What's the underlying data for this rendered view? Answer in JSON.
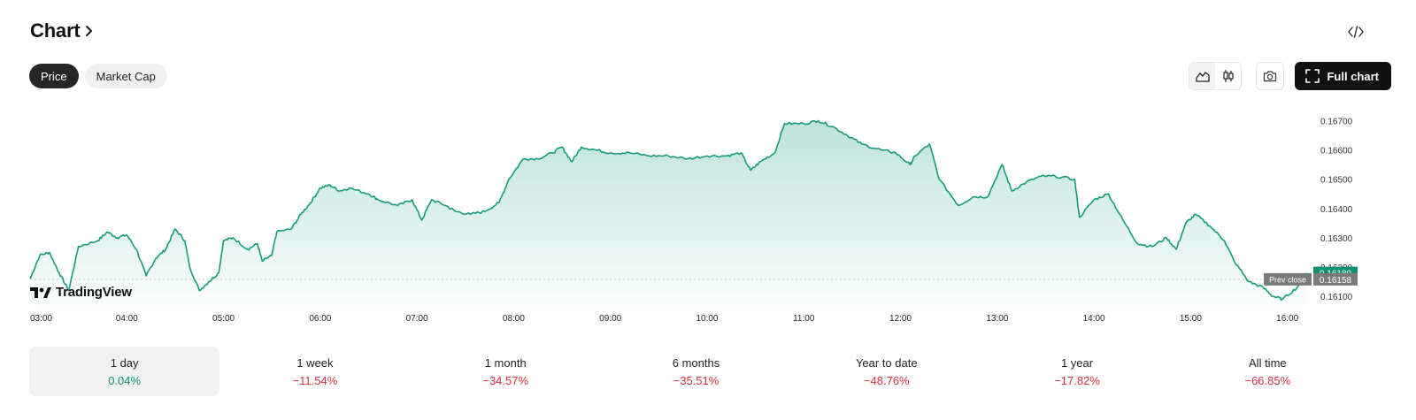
{
  "header": {
    "title": "Chart",
    "chevron_icon": "chevron-right-icon",
    "embed_icon": "code-icon"
  },
  "tabs": [
    {
      "label": "Price",
      "active": true
    },
    {
      "label": "Market Cap",
      "active": false
    }
  ],
  "toolbar": {
    "line_icon": "area-chart-icon",
    "candle_icon": "candlestick-icon",
    "camera_icon": "camera-icon",
    "fullchart_icon": "expand-icon",
    "full_chart_label": "Full chart"
  },
  "brand": {
    "logo_icon": "tradingview-logo-icon",
    "name": "TradingView"
  },
  "colors": {
    "line": "#159a7c",
    "positive": "#0e8f6e",
    "negative": "#d9303e",
    "current_badge": "#0e8f6e",
    "prev_badge": "#7a7a7a"
  },
  "chart_data": {
    "type": "area",
    "x_ticks": [
      "03:00",
      "04:00",
      "05:00",
      "06:00",
      "07:00",
      "08:00",
      "09:00",
      "10:00",
      "11:00",
      "12:00",
      "13:00",
      "14:00",
      "15:00",
      "16:00"
    ],
    "y_ticks": [
      "0.16100",
      "0.16200",
      "0.16300",
      "0.16400",
      "0.16500",
      "0.16600",
      "0.16700"
    ],
    "ylim": [
      0.1607,
      0.1675
    ],
    "current_price": "0.16180",
    "prev_close_label": "Prev close",
    "prev_close": "0.16158",
    "series": [
      {
        "values": [
          [
            3.0,
            0.1616
          ],
          [
            3.1,
            0.1624
          ],
          [
            3.2,
            0.1625
          ],
          [
            3.3,
            0.1618
          ],
          [
            3.4,
            0.1612
          ],
          [
            3.5,
            0.1627
          ],
          [
            3.7,
            0.1629
          ],
          [
            3.8,
            0.1632
          ],
          [
            3.9,
            0.163
          ],
          [
            4.0,
            0.1631
          ],
          [
            4.1,
            0.1626
          ],
          [
            4.2,
            0.1617
          ],
          [
            4.3,
            0.1623
          ],
          [
            4.4,
            0.1626
          ],
          [
            4.5,
            0.1633
          ],
          [
            4.6,
            0.1629
          ],
          [
            4.65,
            0.162
          ],
          [
            4.75,
            0.1612
          ],
          [
            4.85,
            0.1615
          ],
          [
            4.95,
            0.1618
          ],
          [
            5.0,
            0.1629
          ],
          [
            5.1,
            0.163
          ],
          [
            5.25,
            0.1626
          ],
          [
            5.35,
            0.1628
          ],
          [
            5.4,
            0.1622
          ],
          [
            5.5,
            0.1624
          ],
          [
            5.55,
            0.1632
          ],
          [
            5.7,
            0.1633
          ],
          [
            5.8,
            0.1638
          ],
          [
            5.9,
            0.1642
          ],
          [
            6.0,
            0.1647
          ],
          [
            6.1,
            0.1648
          ],
          [
            6.2,
            0.1646
          ],
          [
            6.3,
            0.1647
          ],
          [
            6.5,
            0.1645
          ],
          [
            6.6,
            0.1643
          ],
          [
            6.8,
            0.1641
          ],
          [
            6.95,
            0.1643
          ],
          [
            7.05,
            0.1636
          ],
          [
            7.15,
            0.1643
          ],
          [
            7.3,
            0.1641
          ],
          [
            7.4,
            0.1639
          ],
          [
            7.55,
            0.1638
          ],
          [
            7.7,
            0.1639
          ],
          [
            7.85,
            0.1642
          ],
          [
            7.95,
            0.165
          ],
          [
            8.1,
            0.1657
          ],
          [
            8.25,
            0.1657
          ],
          [
            8.4,
            0.1659
          ],
          [
            8.5,
            0.1661
          ],
          [
            8.6,
            0.1656
          ],
          [
            8.7,
            0.1661
          ],
          [
            8.85,
            0.166
          ],
          [
            9.0,
            0.1659
          ],
          [
            9.2,
            0.1659
          ],
          [
            9.4,
            0.1658
          ],
          [
            9.6,
            0.1658
          ],
          [
            9.8,
            0.1657
          ],
          [
            10.0,
            0.1658
          ],
          [
            10.2,
            0.1658
          ],
          [
            10.35,
            0.1659
          ],
          [
            10.45,
            0.1653
          ],
          [
            10.55,
            0.1656
          ],
          [
            10.7,
            0.1659
          ],
          [
            10.8,
            0.1669
          ],
          [
            11.0,
            0.1669
          ],
          [
            11.15,
            0.167
          ],
          [
            11.3,
            0.1668
          ],
          [
            11.45,
            0.1665
          ],
          [
            11.6,
            0.1662
          ],
          [
            11.8,
            0.166
          ],
          [
            11.95,
            0.1659
          ],
          [
            12.1,
            0.1655
          ],
          [
            12.15,
            0.1658
          ],
          [
            12.3,
            0.1662
          ],
          [
            12.4,
            0.165
          ],
          [
            12.6,
            0.1641
          ],
          [
            12.75,
            0.1644
          ],
          [
            12.9,
            0.1644
          ],
          [
            13.05,
            0.1655
          ],
          [
            13.15,
            0.1646
          ],
          [
            13.3,
            0.1649
          ],
          [
            13.45,
            0.1651
          ],
          [
            13.6,
            0.1651
          ],
          [
            13.8,
            0.165
          ],
          [
            13.85,
            0.1637
          ],
          [
            14.0,
            0.1643
          ],
          [
            14.15,
            0.1645
          ],
          [
            14.3,
            0.1636
          ],
          [
            14.45,
            0.1628
          ],
          [
            14.6,
            0.1627
          ],
          [
            14.75,
            0.163
          ],
          [
            14.85,
            0.1626
          ],
          [
            14.95,
            0.1635
          ],
          [
            15.05,
            0.1638
          ],
          [
            15.2,
            0.1634
          ],
          [
            15.35,
            0.1629
          ],
          [
            15.45,
            0.1622
          ],
          [
            15.6,
            0.1615
          ],
          [
            15.75,
            0.1613
          ],
          [
            15.85,
            0.161
          ],
          [
            15.95,
            0.1609
          ],
          [
            16.1,
            0.1613
          ],
          [
            16.2,
            0.1618
          ]
        ]
      }
    ]
  },
  "periods": [
    {
      "label": "1 day",
      "change": "0.04%",
      "trend": "pos",
      "active": true
    },
    {
      "label": "1 week",
      "change": "−11.54%",
      "trend": "neg",
      "active": false
    },
    {
      "label": "1 month",
      "change": "−34.57%",
      "trend": "neg",
      "active": false
    },
    {
      "label": "6 months",
      "change": "−35.51%",
      "trend": "neg",
      "active": false
    },
    {
      "label": "Year to date",
      "change": "−48.76%",
      "trend": "neg",
      "active": false
    },
    {
      "label": "1 year",
      "change": "−17.82%",
      "trend": "neg",
      "active": false
    },
    {
      "label": "All time",
      "change": "−66.85%",
      "trend": "neg",
      "active": false
    }
  ]
}
